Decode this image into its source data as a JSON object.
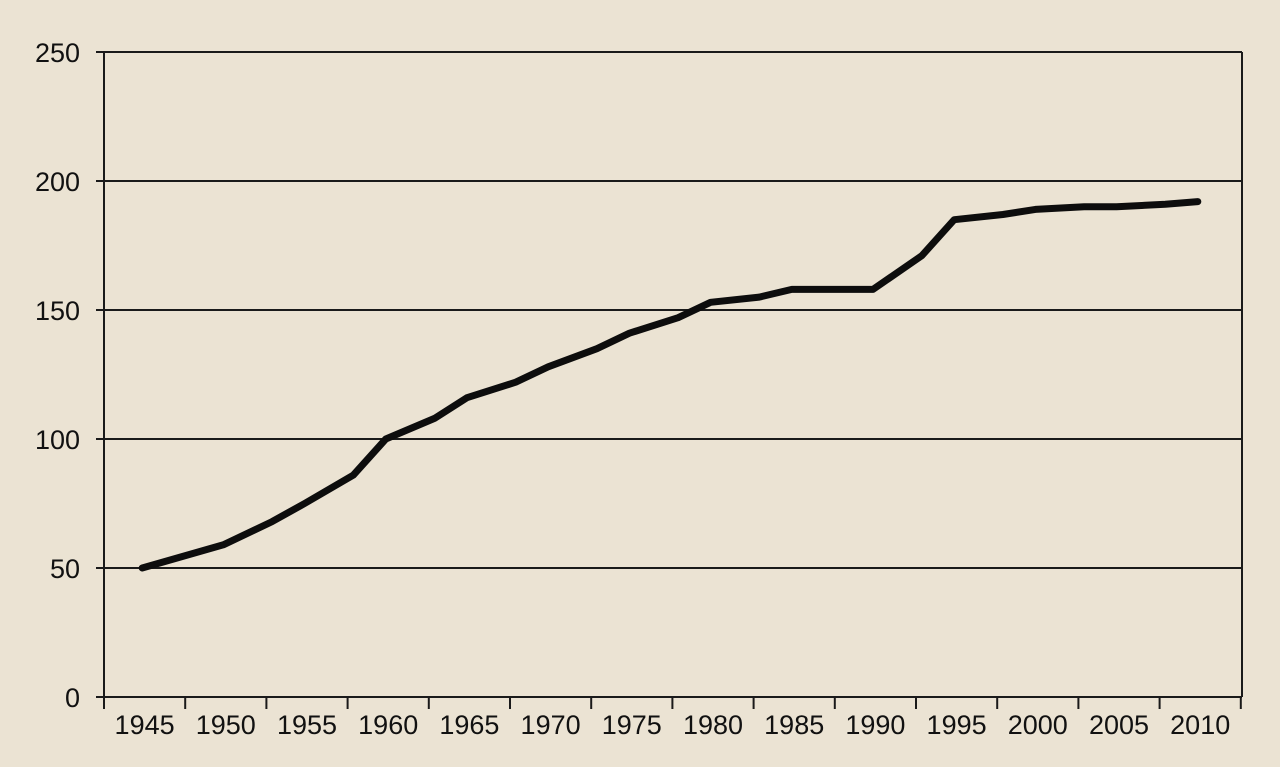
{
  "colors": {
    "background": "#ebe3d3",
    "line": "#0d0d0d",
    "grid": "#1a1a1a"
  },
  "chart_data": {
    "type": "line",
    "title": "",
    "xlabel": "",
    "ylabel": "",
    "xlim": [
      1943,
      2012
    ],
    "ylim": [
      0,
      250
    ],
    "grid": true,
    "legend": "none",
    "x_ticks": [
      "1945",
      "1950",
      "1955",
      "1960",
      "1965",
      "1970",
      "1975",
      "1980",
      "1985",
      "1990",
      "1995",
      "2000",
      "2005",
      "2010"
    ],
    "y_ticks": [
      "0",
      "50",
      "100",
      "150",
      "200",
      "250"
    ],
    "series": [
      {
        "x": [
          1945,
          1950,
          1953,
          1955,
          1958,
          1960,
          1963,
          1965,
          1968,
          1970,
          1973,
          1975,
          1978,
          1980,
          1983,
          1985,
          1988,
          1990,
          1993,
          1995,
          1998,
          2000,
          2003,
          2005,
          2008,
          2010
        ],
        "y": [
          50,
          59,
          68,
          75,
          86,
          100,
          108,
          116,
          122,
          128,
          135,
          141,
          147,
          153,
          155,
          158,
          158,
          158,
          171,
          185,
          187,
          189,
          190,
          190,
          191,
          192
        ]
      }
    ]
  }
}
